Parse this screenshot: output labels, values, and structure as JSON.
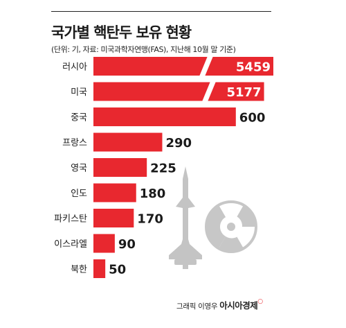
{
  "header": {
    "title": "국가별 핵탄두 보유 현황",
    "subtitle": "(단위: 기, 자료: 미국과학자연맹(FAS), 지난해 10월 말 기준)"
  },
  "footer": {
    "credit": "그래픽 이영우",
    "brand": "아시아경제",
    "brand_mark": "○"
  },
  "colors": {
    "bar": "#e8282f",
    "icon": "#c7c7c7",
    "text": "#1a1a1a"
  },
  "icons": [
    "missile-icon",
    "radiation-icon"
  ],
  "chart_data": {
    "type": "bar",
    "orientation": "horizontal",
    "title": "국가별 핵탄두 보유 현황",
    "subtitle": "(단위: 기, 자료: 미국과학자연맹(FAS), 지난해 10월 말 기준)",
    "categories": [
      "러시아",
      "미국",
      "중국",
      "프랑스",
      "영국",
      "인도",
      "파키스탄",
      "이스라엘",
      "북한"
    ],
    "values": [
      5459,
      5177,
      600,
      290,
      225,
      180,
      170,
      90,
      50
    ],
    "axis_break": true,
    "grid": false,
    "legend": "none"
  }
}
